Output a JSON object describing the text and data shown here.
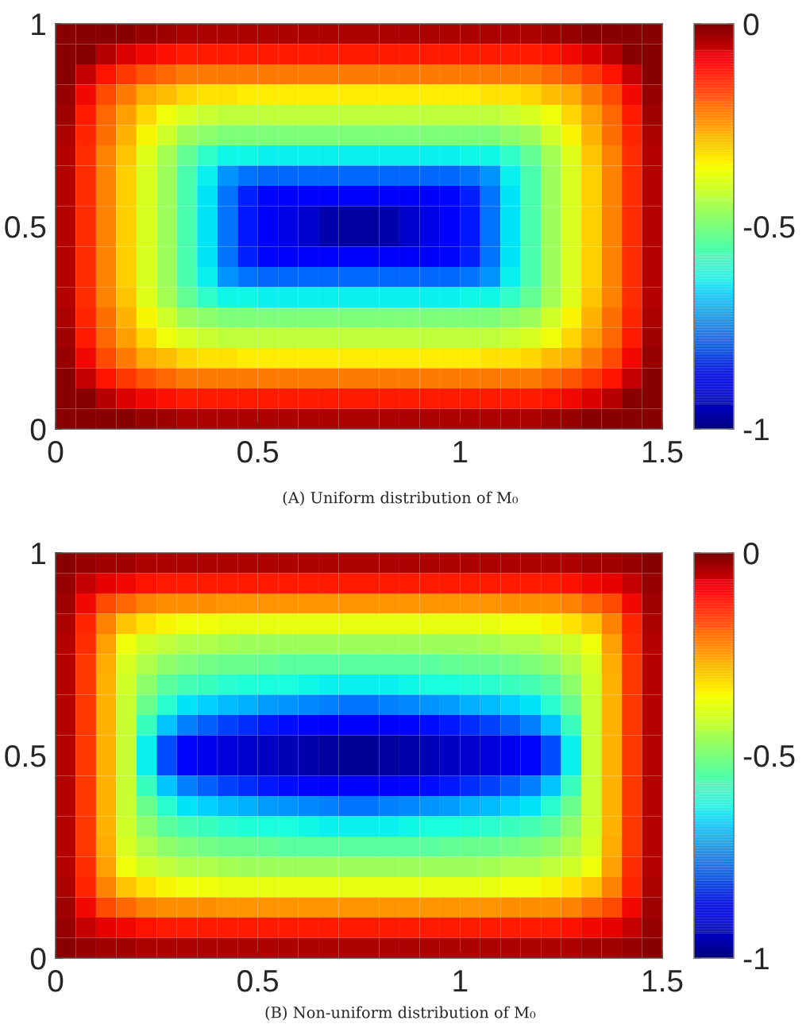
{
  "chart_data": [
    {
      "type": "heatmap",
      "x": [
        0.025,
        0.075,
        0.125,
        0.175,
        0.225,
        0.275,
        0.325,
        0.375,
        0.425,
        0.475,
        0.525,
        0.575,
        0.625,
        0.675,
        0.725,
        0.775,
        0.825,
        0.875,
        0.925,
        0.975,
        1.025,
        1.075,
        1.125,
        1.175,
        1.225,
        1.275,
        1.325,
        1.375,
        1.425,
        1.475
      ],
      "cells": [
        [
          -0.01,
          -0.01,
          -0.01,
          -0.01,
          -0.02,
          -0.03,
          -0.04,
          -0.04,
          -0.04,
          -0.04,
          -0.04,
          -0.04,
          -0.04,
          -0.04,
          -0.04,
          -0.04,
          -0.04,
          -0.04,
          -0.04,
          -0.04,
          -0.04,
          -0.04,
          -0.04,
          -0.04,
          -0.03,
          -0.02,
          -0.01,
          -0.01,
          -0.01,
          -0.01
        ],
        [
          -0.01,
          -0.01,
          -0.05,
          -0.08,
          -0.1,
          -0.11,
          -0.12,
          -0.12,
          -0.12,
          -0.12,
          -0.12,
          -0.12,
          -0.12,
          -0.12,
          -0.12,
          -0.12,
          -0.12,
          -0.12,
          -0.12,
          -0.12,
          -0.12,
          -0.12,
          -0.12,
          -0.12,
          -0.11,
          -0.1,
          -0.08,
          -0.05,
          -0.01,
          -0.01
        ],
        [
          -0.01,
          -0.06,
          -0.11,
          -0.15,
          -0.18,
          -0.2,
          -0.22,
          -0.22,
          -0.22,
          -0.22,
          -0.22,
          -0.22,
          -0.22,
          -0.22,
          -0.22,
          -0.22,
          -0.22,
          -0.22,
          -0.22,
          -0.22,
          -0.22,
          -0.22,
          -0.22,
          -0.22,
          -0.2,
          -0.18,
          -0.15,
          -0.11,
          -0.06,
          -0.01
        ],
        [
          -0.02,
          -0.1,
          -0.17,
          -0.22,
          -0.27,
          -0.29,
          -0.32,
          -0.33,
          -0.33,
          -0.34,
          -0.34,
          -0.34,
          -0.34,
          -0.34,
          -0.34,
          -0.34,
          -0.34,
          -0.34,
          -0.34,
          -0.34,
          -0.34,
          -0.33,
          -0.33,
          -0.32,
          -0.29,
          -0.27,
          -0.22,
          -0.17,
          -0.1,
          -0.02
        ],
        [
          -0.03,
          -0.12,
          -0.2,
          -0.26,
          -0.32,
          -0.36,
          -0.39,
          -0.41,
          -0.42,
          -0.42,
          -0.42,
          -0.42,
          -0.42,
          -0.42,
          -0.42,
          -0.42,
          -0.42,
          -0.42,
          -0.42,
          -0.42,
          -0.42,
          -0.42,
          -0.41,
          -0.39,
          -0.36,
          -0.32,
          -0.26,
          -0.2,
          -0.12,
          -0.03
        ],
        [
          -0.04,
          -0.13,
          -0.21,
          -0.28,
          -0.35,
          -0.4,
          -0.46,
          -0.48,
          -0.5,
          -0.5,
          -0.5,
          -0.5,
          -0.5,
          -0.5,
          -0.5,
          -0.5,
          -0.5,
          -0.5,
          -0.5,
          -0.5,
          -0.5,
          -0.5,
          -0.48,
          -0.46,
          -0.4,
          -0.35,
          -0.28,
          -0.21,
          -0.13,
          -0.04
        ],
        [
          -0.05,
          -0.14,
          -0.23,
          -0.3,
          -0.38,
          -0.45,
          -0.53,
          -0.59,
          -0.63,
          -0.63,
          -0.64,
          -0.64,
          -0.64,
          -0.64,
          -0.64,
          -0.64,
          -0.64,
          -0.64,
          -0.64,
          -0.64,
          -0.63,
          -0.63,
          -0.59,
          -0.53,
          -0.45,
          -0.38,
          -0.3,
          -0.23,
          -0.14,
          -0.05
        ],
        [
          -0.05,
          -0.14,
          -0.23,
          -0.31,
          -0.39,
          -0.46,
          -0.56,
          -0.64,
          -0.73,
          -0.76,
          -0.77,
          -0.77,
          -0.77,
          -0.77,
          -0.77,
          -0.77,
          -0.77,
          -0.77,
          -0.77,
          -0.77,
          -0.76,
          -0.73,
          -0.64,
          -0.56,
          -0.46,
          -0.39,
          -0.31,
          -0.23,
          -0.14,
          -0.05
        ],
        [
          -0.05,
          -0.14,
          -0.23,
          -0.31,
          -0.39,
          -0.46,
          -0.56,
          -0.65,
          -0.76,
          -0.84,
          -0.87,
          -0.88,
          -0.89,
          -0.89,
          -0.89,
          -0.89,
          -0.89,
          -0.89,
          -0.88,
          -0.87,
          -0.84,
          -0.76,
          -0.65,
          -0.56,
          -0.46,
          -0.39,
          -0.31,
          -0.23,
          -0.14,
          -0.05
        ],
        [
          -0.05,
          -0.14,
          -0.23,
          -0.31,
          -0.39,
          -0.46,
          -0.56,
          -0.65,
          -0.76,
          -0.85,
          -0.89,
          -0.91,
          -0.93,
          -0.96,
          -0.97,
          -0.97,
          -0.96,
          -0.93,
          -0.91,
          -0.89,
          -0.85,
          -0.76,
          -0.65,
          -0.56,
          -0.46,
          -0.39,
          -0.31,
          -0.23,
          -0.14,
          -0.05
        ],
        [
          -0.05,
          -0.14,
          -0.23,
          -0.31,
          -0.39,
          -0.46,
          -0.56,
          -0.65,
          -0.76,
          -0.85,
          -0.89,
          -0.91,
          -0.93,
          -0.96,
          -0.97,
          -0.97,
          -0.96,
          -0.93,
          -0.91,
          -0.89,
          -0.85,
          -0.76,
          -0.65,
          -0.56,
          -0.46,
          -0.39,
          -0.31,
          -0.23,
          -0.14,
          -0.05
        ],
        [
          -0.05,
          -0.14,
          -0.23,
          -0.31,
          -0.39,
          -0.46,
          -0.56,
          -0.65,
          -0.76,
          -0.84,
          -0.87,
          -0.88,
          -0.89,
          -0.89,
          -0.89,
          -0.89,
          -0.89,
          -0.89,
          -0.88,
          -0.87,
          -0.84,
          -0.76,
          -0.65,
          -0.56,
          -0.46,
          -0.39,
          -0.31,
          -0.23,
          -0.14,
          -0.05
        ],
        [
          -0.05,
          -0.14,
          -0.23,
          -0.31,
          -0.39,
          -0.46,
          -0.56,
          -0.64,
          -0.73,
          -0.76,
          -0.77,
          -0.77,
          -0.77,
          -0.77,
          -0.77,
          -0.77,
          -0.77,
          -0.77,
          -0.77,
          -0.77,
          -0.76,
          -0.73,
          -0.64,
          -0.56,
          -0.46,
          -0.39,
          -0.31,
          -0.23,
          -0.14,
          -0.05
        ],
        [
          -0.05,
          -0.14,
          -0.23,
          -0.3,
          -0.38,
          -0.45,
          -0.53,
          -0.59,
          -0.63,
          -0.63,
          -0.64,
          -0.64,
          -0.64,
          -0.64,
          -0.64,
          -0.64,
          -0.64,
          -0.64,
          -0.64,
          -0.64,
          -0.63,
          -0.63,
          -0.59,
          -0.53,
          -0.45,
          -0.38,
          -0.3,
          -0.23,
          -0.14,
          -0.05
        ],
        [
          -0.04,
          -0.13,
          -0.21,
          -0.28,
          -0.35,
          -0.4,
          -0.46,
          -0.48,
          -0.5,
          -0.5,
          -0.5,
          -0.5,
          -0.5,
          -0.5,
          -0.5,
          -0.5,
          -0.5,
          -0.5,
          -0.5,
          -0.5,
          -0.5,
          -0.5,
          -0.48,
          -0.46,
          -0.4,
          -0.35,
          -0.28,
          -0.21,
          -0.13,
          -0.04
        ],
        [
          -0.03,
          -0.12,
          -0.2,
          -0.26,
          -0.32,
          -0.36,
          -0.39,
          -0.41,
          -0.42,
          -0.42,
          -0.42,
          -0.42,
          -0.42,
          -0.42,
          -0.42,
          -0.42,
          -0.42,
          -0.42,
          -0.42,
          -0.42,
          -0.42,
          -0.42,
          -0.41,
          -0.39,
          -0.36,
          -0.32,
          -0.26,
          -0.2,
          -0.12,
          -0.03
        ],
        [
          -0.02,
          -0.1,
          -0.17,
          -0.22,
          -0.27,
          -0.29,
          -0.32,
          -0.33,
          -0.33,
          -0.34,
          -0.34,
          -0.34,
          -0.34,
          -0.34,
          -0.34,
          -0.34,
          -0.34,
          -0.34,
          -0.34,
          -0.34,
          -0.34,
          -0.33,
          -0.33,
          -0.32,
          -0.29,
          -0.27,
          -0.22,
          -0.17,
          -0.1,
          -0.02
        ],
        [
          -0.01,
          -0.06,
          -0.11,
          -0.15,
          -0.18,
          -0.2,
          -0.22,
          -0.22,
          -0.22,
          -0.22,
          -0.22,
          -0.22,
          -0.22,
          -0.22,
          -0.22,
          -0.22,
          -0.22,
          -0.22,
          -0.22,
          -0.22,
          -0.22,
          -0.22,
          -0.22,
          -0.22,
          -0.2,
          -0.18,
          -0.15,
          -0.11,
          -0.06,
          -0.01
        ],
        [
          -0.01,
          -0.01,
          -0.05,
          -0.08,
          -0.1,
          -0.11,
          -0.12,
          -0.12,
          -0.12,
          -0.12,
          -0.12,
          -0.12,
          -0.12,
          -0.12,
          -0.12,
          -0.12,
          -0.12,
          -0.12,
          -0.12,
          -0.12,
          -0.12,
          -0.12,
          -0.12,
          -0.12,
          -0.11,
          -0.1,
          -0.08,
          -0.05,
          -0.01,
          -0.01
        ],
        [
          -0.01,
          -0.01,
          -0.01,
          -0.01,
          -0.02,
          -0.03,
          -0.04,
          -0.04,
          -0.04,
          -0.04,
          -0.04,
          -0.04,
          -0.04,
          -0.04,
          -0.04,
          -0.04,
          -0.04,
          -0.04,
          -0.04,
          -0.04,
          -0.04,
          -0.04,
          -0.04,
          -0.04,
          -0.03,
          -0.02,
          -0.01,
          -0.01,
          -0.01,
          -0.01
        ]
      ],
      "xlim": [
        0,
        1.5
      ],
      "ylim": [
        0,
        1
      ],
      "xticks": [
        0,
        0.5,
        1,
        1.5
      ],
      "yticks": [
        0,
        0.5,
        1
      ],
      "clim": [
        -1,
        0
      ],
      "cticks": [
        -1,
        -0.5,
        0
      ],
      "annotations": [
        "(A) Uniform distribution of M₀"
      ]
    },
    {
      "type": "heatmap",
      "x": [
        0.025,
        0.075,
        0.125,
        0.175,
        0.225,
        0.275,
        0.325,
        0.375,
        0.425,
        0.475,
        0.525,
        0.575,
        0.625,
        0.675,
        0.725,
        0.775,
        0.825,
        0.875,
        0.925,
        0.975,
        1.025,
        1.075,
        1.125,
        1.175,
        1.225,
        1.275,
        1.325,
        1.375,
        1.425,
        1.475
      ],
      "cells": [
        [
          -0.01,
          -0.02,
          -0.03,
          -0.03,
          -0.04,
          -0.04,
          -0.04,
          -0.04,
          -0.04,
          -0.04,
          -0.04,
          -0.04,
          -0.04,
          -0.04,
          -0.04,
          -0.04,
          -0.04,
          -0.04,
          -0.04,
          -0.04,
          -0.04,
          -0.04,
          -0.04,
          -0.04,
          -0.04,
          -0.04,
          -0.03,
          -0.03,
          -0.02,
          -0.01
        ],
        [
          -0.02,
          -0.06,
          -0.09,
          -0.1,
          -0.11,
          -0.12,
          -0.12,
          -0.12,
          -0.12,
          -0.12,
          -0.12,
          -0.12,
          -0.12,
          -0.12,
          -0.12,
          -0.12,
          -0.12,
          -0.12,
          -0.12,
          -0.12,
          -0.12,
          -0.12,
          -0.12,
          -0.12,
          -0.12,
          -0.11,
          -0.1,
          -0.09,
          -0.06,
          -0.02
        ],
        [
          -0.03,
          -0.1,
          -0.17,
          -0.2,
          -0.23,
          -0.24,
          -0.24,
          -0.24,
          -0.25,
          -0.25,
          -0.25,
          -0.25,
          -0.25,
          -0.25,
          -0.25,
          -0.25,
          -0.25,
          -0.25,
          -0.25,
          -0.25,
          -0.25,
          -0.25,
          -0.24,
          -0.24,
          -0.24,
          -0.23,
          -0.2,
          -0.17,
          -0.1,
          -0.03
        ],
        [
          -0.04,
          -0.13,
          -0.23,
          -0.3,
          -0.33,
          -0.35,
          -0.36,
          -0.36,
          -0.37,
          -0.37,
          -0.37,
          -0.37,
          -0.37,
          -0.37,
          -0.37,
          -0.37,
          -0.37,
          -0.37,
          -0.37,
          -0.37,
          -0.37,
          -0.37,
          -0.36,
          -0.36,
          -0.35,
          -0.33,
          -0.3,
          -0.23,
          -0.13,
          -0.04
        ],
        [
          -0.05,
          -0.14,
          -0.26,
          -0.36,
          -0.4,
          -0.42,
          -0.44,
          -0.44,
          -0.45,
          -0.46,
          -0.46,
          -0.46,
          -0.46,
          -0.46,
          -0.46,
          -0.46,
          -0.46,
          -0.46,
          -0.46,
          -0.46,
          -0.46,
          -0.45,
          -0.44,
          -0.44,
          -0.42,
          -0.4,
          -0.36,
          -0.26,
          -0.14,
          -0.05
        ],
        [
          -0.05,
          -0.15,
          -0.27,
          -0.39,
          -0.44,
          -0.48,
          -0.5,
          -0.51,
          -0.52,
          -0.52,
          -0.53,
          -0.54,
          -0.54,
          -0.54,
          -0.54,
          -0.54,
          -0.54,
          -0.54,
          -0.54,
          -0.53,
          -0.52,
          -0.52,
          -0.51,
          -0.5,
          -0.48,
          -0.44,
          -0.39,
          -0.27,
          -0.15,
          -0.05
        ],
        [
          -0.05,
          -0.15,
          -0.28,
          -0.4,
          -0.48,
          -0.54,
          -0.57,
          -0.58,
          -0.6,
          -0.61,
          -0.62,
          -0.62,
          -0.63,
          -0.64,
          -0.64,
          -0.64,
          -0.64,
          -0.63,
          -0.62,
          -0.62,
          -0.61,
          -0.6,
          -0.58,
          -0.57,
          -0.54,
          -0.48,
          -0.4,
          -0.28,
          -0.15,
          -0.05
        ],
        [
          -0.05,
          -0.15,
          -0.28,
          -0.41,
          -0.52,
          -0.6,
          -0.65,
          -0.67,
          -0.69,
          -0.7,
          -0.72,
          -0.73,
          -0.74,
          -0.75,
          -0.76,
          -0.76,
          -0.75,
          -0.74,
          -0.73,
          -0.72,
          -0.7,
          -0.69,
          -0.67,
          -0.65,
          -0.6,
          -0.52,
          -0.41,
          -0.28,
          -0.15,
          -0.05
        ],
        [
          -0.05,
          -0.15,
          -0.28,
          -0.41,
          -0.58,
          -0.68,
          -0.75,
          -0.78,
          -0.81,
          -0.83,
          -0.85,
          -0.86,
          -0.87,
          -0.88,
          -0.89,
          -0.89,
          -0.88,
          -0.87,
          -0.86,
          -0.85,
          -0.83,
          -0.81,
          -0.78,
          -0.75,
          -0.68,
          -0.58,
          -0.41,
          -0.28,
          -0.15,
          -0.05
        ],
        [
          -0.05,
          -0.15,
          -0.28,
          -0.41,
          -0.64,
          -0.8,
          -0.87,
          -0.9,
          -0.92,
          -0.93,
          -0.94,
          -0.95,
          -0.96,
          -0.97,
          -0.98,
          -0.98,
          -0.97,
          -0.96,
          -0.95,
          -0.94,
          -0.93,
          -0.92,
          -0.9,
          -0.87,
          -0.8,
          -0.64,
          -0.41,
          -0.28,
          -0.15,
          -0.05
        ],
        [
          -0.05,
          -0.15,
          -0.28,
          -0.41,
          -0.64,
          -0.8,
          -0.87,
          -0.9,
          -0.92,
          -0.93,
          -0.94,
          -0.95,
          -0.96,
          -0.97,
          -0.98,
          -0.98,
          -0.97,
          -0.96,
          -0.95,
          -0.94,
          -0.93,
          -0.92,
          -0.9,
          -0.87,
          -0.8,
          -0.64,
          -0.41,
          -0.28,
          -0.15,
          -0.05
        ],
        [
          -0.05,
          -0.15,
          -0.28,
          -0.41,
          -0.58,
          -0.68,
          -0.75,
          -0.78,
          -0.81,
          -0.83,
          -0.85,
          -0.86,
          -0.87,
          -0.88,
          -0.89,
          -0.89,
          -0.88,
          -0.87,
          -0.86,
          -0.85,
          -0.83,
          -0.81,
          -0.78,
          -0.75,
          -0.68,
          -0.58,
          -0.41,
          -0.28,
          -0.15,
          -0.05
        ],
        [
          -0.05,
          -0.15,
          -0.28,
          -0.41,
          -0.52,
          -0.6,
          -0.65,
          -0.67,
          -0.69,
          -0.7,
          -0.72,
          -0.73,
          -0.74,
          -0.75,
          -0.76,
          -0.76,
          -0.75,
          -0.74,
          -0.73,
          -0.72,
          -0.7,
          -0.69,
          -0.67,
          -0.65,
          -0.6,
          -0.52,
          -0.41,
          -0.28,
          -0.15,
          -0.05
        ],
        [
          -0.05,
          -0.15,
          -0.28,
          -0.4,
          -0.48,
          -0.54,
          -0.57,
          -0.58,
          -0.6,
          -0.61,
          -0.62,
          -0.62,
          -0.63,
          -0.64,
          -0.64,
          -0.64,
          -0.64,
          -0.63,
          -0.62,
          -0.62,
          -0.61,
          -0.6,
          -0.58,
          -0.57,
          -0.54,
          -0.48,
          -0.4,
          -0.28,
          -0.15,
          -0.05
        ],
        [
          -0.05,
          -0.15,
          -0.27,
          -0.39,
          -0.44,
          -0.48,
          -0.5,
          -0.51,
          -0.52,
          -0.52,
          -0.53,
          -0.54,
          -0.54,
          -0.54,
          -0.54,
          -0.54,
          -0.54,
          -0.54,
          -0.54,
          -0.53,
          -0.52,
          -0.52,
          -0.51,
          -0.5,
          -0.48,
          -0.44,
          -0.39,
          -0.27,
          -0.15,
          -0.05
        ],
        [
          -0.05,
          -0.14,
          -0.26,
          -0.36,
          -0.4,
          -0.42,
          -0.44,
          -0.44,
          -0.45,
          -0.46,
          -0.46,
          -0.46,
          -0.46,
          -0.46,
          -0.46,
          -0.46,
          -0.46,
          -0.46,
          -0.46,
          -0.46,
          -0.46,
          -0.45,
          -0.44,
          -0.44,
          -0.42,
          -0.4,
          -0.36,
          -0.26,
          -0.14,
          -0.05
        ],
        [
          -0.04,
          -0.13,
          -0.23,
          -0.3,
          -0.33,
          -0.35,
          -0.36,
          -0.36,
          -0.37,
          -0.37,
          -0.37,
          -0.37,
          -0.37,
          -0.37,
          -0.37,
          -0.37,
          -0.37,
          -0.37,
          -0.37,
          -0.37,
          -0.37,
          -0.37,
          -0.36,
          -0.36,
          -0.35,
          -0.33,
          -0.3,
          -0.23,
          -0.13,
          -0.04
        ],
        [
          -0.03,
          -0.1,
          -0.17,
          -0.2,
          -0.23,
          -0.24,
          -0.24,
          -0.24,
          -0.25,
          -0.25,
          -0.25,
          -0.25,
          -0.25,
          -0.25,
          -0.25,
          -0.25,
          -0.25,
          -0.25,
          -0.25,
          -0.25,
          -0.25,
          -0.25,
          -0.24,
          -0.24,
          -0.24,
          -0.23,
          -0.2,
          -0.17,
          -0.1,
          -0.03
        ],
        [
          -0.02,
          -0.06,
          -0.09,
          -0.1,
          -0.11,
          -0.12,
          -0.12,
          -0.12,
          -0.12,
          -0.12,
          -0.12,
          -0.12,
          -0.12,
          -0.12,
          -0.12,
          -0.12,
          -0.12,
          -0.12,
          -0.12,
          -0.12,
          -0.12,
          -0.12,
          -0.12,
          -0.12,
          -0.12,
          -0.11,
          -0.1,
          -0.09,
          -0.06,
          -0.02
        ],
        [
          -0.01,
          -0.02,
          -0.03,
          -0.03,
          -0.04,
          -0.04,
          -0.04,
          -0.04,
          -0.04,
          -0.04,
          -0.04,
          -0.04,
          -0.04,
          -0.04,
          -0.04,
          -0.04,
          -0.04,
          -0.04,
          -0.04,
          -0.04,
          -0.04,
          -0.04,
          -0.04,
          -0.04,
          -0.04,
          -0.04,
          -0.03,
          -0.03,
          -0.02,
          -0.01
        ]
      ],
      "xlim": [
        0,
        1.5
      ],
      "ylim": [
        0,
        1
      ],
      "xticks": [
        0,
        0.5,
        1,
        1.5
      ],
      "yticks": [
        0,
        0.5,
        1
      ],
      "clim": [
        -1,
        0
      ],
      "cticks": [
        -1,
        -0.5,
        0
      ],
      "annotations": [
        "(B) Non-uniform distribution of M₀"
      ]
    }
  ]
}
